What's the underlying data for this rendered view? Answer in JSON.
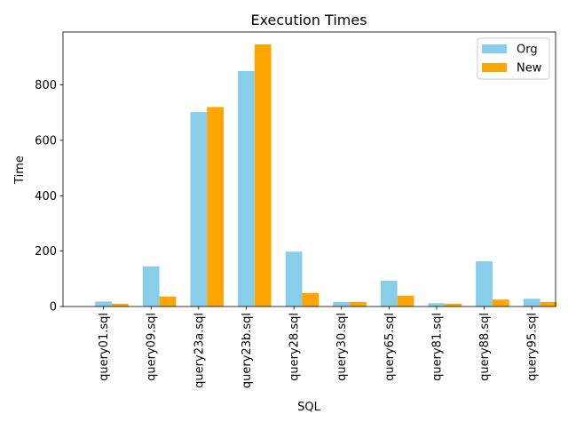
{
  "chart_data": {
    "type": "bar",
    "title": "Execution Times",
    "xlabel": "SQL",
    "ylabel": "Time",
    "categories": [
      "query01.sql",
      "query09.sql",
      "query23a.sql",
      "query23b.sql",
      "query28.sql",
      "query30.sql",
      "query65.sql",
      "query81.sql",
      "query88.sql",
      "query95.sql"
    ],
    "series": [
      {
        "name": "Org",
        "color": "#87ceeb",
        "values": [
          18,
          145,
          702,
          850,
          198,
          16,
          93,
          12,
          163,
          28
        ]
      },
      {
        "name": "New",
        "color": "#ffa500",
        "values": [
          10,
          36,
          720,
          946,
          49,
          16,
          39,
          10,
          25,
          16
        ]
      }
    ],
    "ylim": [
      0,
      991
    ],
    "yticks": [
      0,
      200,
      400,
      600,
      800
    ],
    "grid": false,
    "legend_position": "top-right"
  }
}
